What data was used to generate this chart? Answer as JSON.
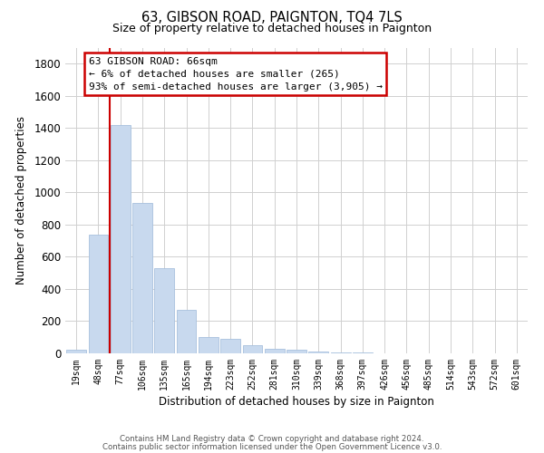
{
  "title": "63, GIBSON ROAD, PAIGNTON, TQ4 7LS",
  "subtitle": "Size of property relative to detached houses in Paignton",
  "xlabel": "Distribution of detached houses by size in Paignton",
  "ylabel": "Number of detached properties",
  "bar_labels": [
    "19sqm",
    "48sqm",
    "77sqm",
    "106sqm",
    "135sqm",
    "165sqm",
    "194sqm",
    "223sqm",
    "252sqm",
    "281sqm",
    "310sqm",
    "339sqm",
    "368sqm",
    "397sqm",
    "426sqm",
    "456sqm",
    "485sqm",
    "514sqm",
    "543sqm",
    "572sqm",
    "601sqm"
  ],
  "bar_values": [
    20,
    735,
    1420,
    935,
    530,
    270,
    100,
    90,
    50,
    28,
    20,
    10,
    5,
    3,
    2,
    1,
    1,
    0,
    0,
    0,
    0
  ],
  "bar_color": "#c8d9ee",
  "bar_edge_color": "#a8c0de",
  "ylim": [
    0,
    1900
  ],
  "yticks": [
    0,
    200,
    400,
    600,
    800,
    1000,
    1200,
    1400,
    1600,
    1800
  ],
  "vline_color": "#cc0000",
  "annotation_line1": "63 GIBSON ROAD: 66sqm",
  "annotation_line2": "← 6% of detached houses are smaller (265)",
  "annotation_line3": "93% of semi-detached houses are larger (3,905) →",
  "footnote1": "Contains HM Land Registry data © Crown copyright and database right 2024.",
  "footnote2": "Contains public sector information licensed under the Open Government Licence v3.0.",
  "background_color": "#ffffff",
  "grid_color": "#d0d0d0"
}
